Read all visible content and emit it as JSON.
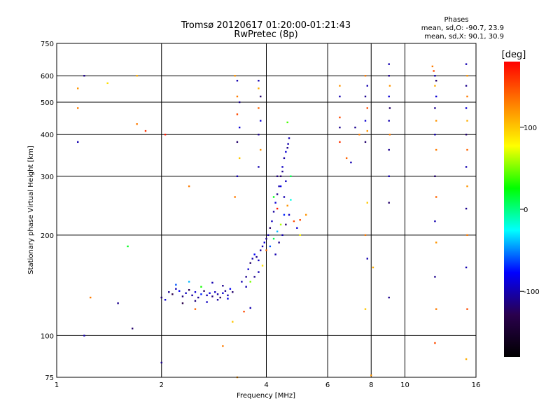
{
  "chart_data": {
    "type": "scatter",
    "title": "Tromsø 20120617 01:20:00-01:21:43",
    "subtitle": "RwPretec (8p)",
    "phase_legend": {
      "heading": "Phases",
      "line_o": "mean, sd,O: -90.7, 23.9",
      "line_x": "mean, sd,X:  90.1, 30.9"
    },
    "xlabel": "Frequency [MHz]",
    "ylabel": "Stationary phase Virtual Height [km]",
    "x_scale": "log",
    "y_scale": "log",
    "xlim": [
      1,
      16
    ],
    "ylim": [
      75,
      750
    ],
    "x_ticks": [
      1,
      2,
      4,
      6,
      8,
      10,
      16
    ],
    "x_tick_labels": [
      "1",
      "2",
      "4",
      "6",
      "8",
      "10",
      "16"
    ],
    "y_ticks": [
      75,
      100,
      200,
      300,
      400,
      500,
      600,
      750
    ],
    "y_tick_labels": [
      "75",
      "100",
      "200",
      "300",
      "400",
      "500",
      "600",
      "750"
    ],
    "grid": true,
    "colorbar": {
      "label": "[deg]",
      "range": [
        -180,
        180
      ],
      "ticks": [
        100,
        0,
        -100
      ],
      "tick_labels": [
        "100",
        "0",
        "-100"
      ],
      "colors": [
        "#000000",
        "#2a004d",
        "#0000ff",
        "#00ffff",
        "#00ff00",
        "#ffff00",
        "#ff8000",
        "#ff0000"
      ]
    },
    "series": [
      {
        "points": [
          [
            2.0,
            130,
            -120
          ],
          [
            2.05,
            128,
            -90
          ],
          [
            2.1,
            135,
            -110
          ],
          [
            2.15,
            133,
            -130
          ],
          [
            2.2,
            138,
            -100
          ],
          [
            2.25,
            136,
            -80
          ],
          [
            2.3,
            131,
            -115
          ],
          [
            2.35,
            134,
            -95
          ],
          [
            2.4,
            137,
            -125
          ],
          [
            2.45,
            132,
            -105
          ],
          [
            2.5,
            135,
            -90
          ],
          [
            2.55,
            130,
            -110
          ],
          [
            2.6,
            133,
            -70
          ],
          [
            2.65,
            136,
            -120
          ],
          [
            2.7,
            132,
            -100
          ],
          [
            2.75,
            134,
            -85
          ],
          [
            2.8,
            131,
            -115
          ],
          [
            2.85,
            135,
            -95
          ],
          [
            2.9,
            133,
            -105
          ],
          [
            2.95,
            130,
            -125
          ],
          [
            3.0,
            134,
            -90
          ],
          [
            3.05,
            136,
            -110
          ],
          [
            3.1,
            132,
            -100
          ],
          [
            3.15,
            138,
            -80
          ],
          [
            3.2,
            135,
            -120
          ],
          [
            2.2,
            142,
            -60
          ],
          [
            2.4,
            145,
            -40
          ],
          [
            2.6,
            140,
            30
          ],
          [
            2.8,
            144,
            -100
          ],
          [
            3.0,
            141,
            -110
          ],
          [
            2.3,
            125,
            -130
          ],
          [
            2.5,
            127,
            -115
          ],
          [
            2.7,
            126,
            -95
          ],
          [
            2.9,
            128,
            -105
          ],
          [
            3.1,
            129,
            -85
          ],
          [
            3.4,
            145,
            -100
          ],
          [
            3.5,
            150,
            -110
          ],
          [
            3.55,
            158,
            -90
          ],
          [
            3.6,
            165,
            -120
          ],
          [
            3.65,
            170,
            -100
          ],
          [
            3.7,
            175,
            -80
          ],
          [
            3.75,
            172,
            -110
          ],
          [
            3.8,
            168,
            -95
          ],
          [
            3.85,
            180,
            -105
          ],
          [
            3.9,
            185,
            -100
          ],
          [
            3.95,
            190,
            -90
          ],
          [
            4.0,
            195,
            -110
          ],
          [
            4.05,
            200,
            -100
          ],
          [
            4.1,
            210,
            -120
          ],
          [
            4.15,
            220,
            -95
          ],
          [
            4.2,
            235,
            -105
          ],
          [
            4.25,
            250,
            -90
          ],
          [
            4.3,
            265,
            -110
          ],
          [
            4.35,
            280,
            -100
          ],
          [
            4.4,
            300,
            -120
          ],
          [
            4.45,
            320,
            -95
          ],
          [
            4.5,
            340,
            -105
          ],
          [
            4.55,
            355,
            -90
          ],
          [
            4.6,
            365,
            -110
          ],
          [
            4.62,
            375,
            -100
          ],
          [
            4.1,
            185,
            -60
          ],
          [
            4.2,
            195,
            10
          ],
          [
            4.3,
            205,
            -40
          ],
          [
            4.4,
            215,
            60
          ],
          [
            4.5,
            230,
            -70
          ],
          [
            4.6,
            245,
            120
          ],
          [
            4.7,
            255,
            -20
          ],
          [
            4.8,
            220,
            150
          ],
          [
            4.9,
            210,
            -90
          ],
          [
            5.0,
            200,
            80
          ],
          [
            4.25,
            175,
            -100
          ],
          [
            4.35,
            190,
            -110
          ],
          [
            4.45,
            200,
            -100
          ],
          [
            4.55,
            215,
            -120
          ],
          [
            4.65,
            230,
            -95
          ],
          [
            4.3,
            300,
            -115
          ],
          [
            4.4,
            280,
            -85
          ],
          [
            4.5,
            260,
            -100
          ],
          [
            4.45,
            310,
            -110
          ],
          [
            4.55,
            290,
            -95
          ],
          [
            3.5,
            140,
            -100
          ],
          [
            3.6,
            145,
            50
          ],
          [
            3.7,
            150,
            -110
          ],
          [
            3.8,
            155,
            -100
          ],
          [
            3.9,
            162,
            90
          ],
          [
            3.25,
            600,
            120
          ],
          [
            3.3,
            580,
            -100
          ],
          [
            3.3,
            520,
            130
          ],
          [
            3.35,
            500,
            -110
          ],
          [
            3.3,
            460,
            150
          ],
          [
            3.35,
            420,
            -90
          ],
          [
            3.3,
            380,
            -120
          ],
          [
            3.35,
            340,
            100
          ],
          [
            3.3,
            300,
            -100
          ],
          [
            3.25,
            260,
            130
          ],
          [
            3.8,
            580,
            -100
          ],
          [
            3.8,
            550,
            110
          ],
          [
            3.85,
            520,
            -120
          ],
          [
            3.8,
            480,
            140
          ],
          [
            3.85,
            440,
            -90
          ],
          [
            3.8,
            400,
            -110
          ],
          [
            3.85,
            360,
            120
          ],
          [
            3.8,
            320,
            -100
          ],
          [
            7.7,
            600,
            130
          ],
          [
            7.8,
            560,
            -100
          ],
          [
            7.7,
            520,
            -110
          ],
          [
            7.8,
            480,
            150
          ],
          [
            7.7,
            440,
            -90
          ],
          [
            7.8,
            410,
            120
          ],
          [
            7.7,
            380,
            -120
          ],
          [
            7.8,
            250,
            100
          ],
          [
            7.7,
            200,
            130
          ],
          [
            7.8,
            170,
            -100
          ],
          [
            8.1,
            160,
            110
          ],
          [
            7.7,
            120,
            100
          ],
          [
            8.0,
            76,
            120
          ],
          [
            9.0,
            650,
            -100
          ],
          [
            9.0,
            600,
            -110
          ],
          [
            9.05,
            560,
            120
          ],
          [
            9.0,
            520,
            -90
          ],
          [
            9.05,
            480,
            -120
          ],
          [
            9.0,
            440,
            -100
          ],
          [
            9.05,
            400,
            130
          ],
          [
            9.0,
            360,
            -110
          ],
          [
            9.0,
            300,
            -100
          ],
          [
            9.0,
            250,
            -120
          ],
          [
            9.0,
            130,
            -110
          ],
          [
            12.0,
            640,
            130
          ],
          [
            12.1,
            620,
            150
          ],
          [
            12.2,
            600,
            -100
          ],
          [
            12.3,
            580,
            -120
          ],
          [
            12.2,
            560,
            110
          ],
          [
            12.3,
            520,
            -90
          ],
          [
            12.2,
            480,
            -110
          ],
          [
            12.3,
            440,
            120
          ],
          [
            12.2,
            400,
            -100
          ],
          [
            12.3,
            360,
            130
          ],
          [
            12.2,
            300,
            -120
          ],
          [
            12.3,
            260,
            140
          ],
          [
            12.2,
            220,
            -100
          ],
          [
            12.3,
            190,
            120
          ],
          [
            12.2,
            150,
            -110
          ],
          [
            12.3,
            120,
            130
          ],
          [
            12.2,
            95,
            150
          ],
          [
            15.0,
            650,
            -100
          ],
          [
            15.1,
            600,
            120
          ],
          [
            15.0,
            560,
            -110
          ],
          [
            15.1,
            520,
            130
          ],
          [
            15.0,
            480,
            -90
          ],
          [
            15.1,
            440,
            110
          ],
          [
            15.0,
            400,
            -120
          ],
          [
            15.1,
            360,
            140
          ],
          [
            15.0,
            320,
            -100
          ],
          [
            15.1,
            280,
            120
          ],
          [
            15.0,
            240,
            -110
          ],
          [
            15.1,
            200,
            130
          ],
          [
            15.0,
            160,
            -100
          ],
          [
            15.1,
            120,
            150
          ],
          [
            15.0,
            85,
            110
          ],
          [
            6.5,
            560,
            120
          ],
          [
            6.5,
            520,
            -100
          ],
          [
            6.5,
            450,
            150
          ],
          [
            6.5,
            420,
            -110
          ],
          [
            6.5,
            380,
            160
          ],
          [
            6.8,
            340,
            140
          ],
          [
            7.0,
            330,
            -100
          ],
          [
            7.2,
            420,
            -110
          ],
          [
            7.4,
            400,
            130
          ],
          [
            1.15,
            550,
            120
          ],
          [
            1.15,
            480,
            130
          ],
          [
            1.15,
            380,
            -100
          ],
          [
            1.2,
            600,
            -110
          ],
          [
            1.4,
            570,
            90
          ],
          [
            1.25,
            130,
            130
          ],
          [
            1.5,
            125,
            -110
          ],
          [
            1.6,
            185,
            20
          ],
          [
            1.7,
            430,
            130
          ],
          [
            1.8,
            410,
            160
          ],
          [
            1.65,
            105,
            -120
          ],
          [
            1.7,
            600,
            110
          ],
          [
            1.2,
            100,
            -100
          ],
          [
            2.0,
            83,
            -110
          ],
          [
            2.05,
            400,
            170
          ],
          [
            2.4,
            280,
            130
          ],
          [
            2.5,
            120,
            140
          ],
          [
            3.0,
            93,
            130
          ],
          [
            3.2,
            110,
            100
          ],
          [
            3.3,
            75,
            120
          ],
          [
            3.45,
            118,
            150
          ],
          [
            3.6,
            121,
            -100
          ],
          [
            5.0,
            222,
            150
          ],
          [
            5.2,
            230,
            120
          ],
          [
            4.6,
            435,
            40
          ],
          [
            4.65,
            390,
            -100
          ],
          [
            4.7,
            300,
            10
          ],
          [
            4.2,
            260,
            20
          ],
          [
            4.3,
            240,
            170
          ],
          [
            4.0,
            180,
            140
          ]
        ]
      }
    ]
  }
}
